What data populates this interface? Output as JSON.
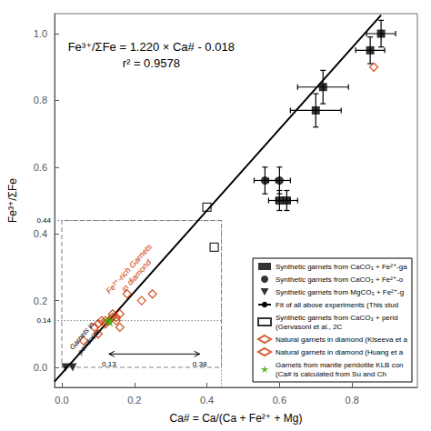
{
  "chart_data": {
    "type": "scatter",
    "title": "Fe³⁺/ΣFe = 1.220 × Ca# - 0.018",
    "subtitle": "r² = 0.9578",
    "xlabel": "Ca# = Ca/(Ca + Fe²⁺ + Mg)",
    "ylabel": "Fe³⁺/ΣFe",
    "xlim": [
      -0.02,
      0.98
    ],
    "ylim": [
      -0.06,
      1.06
    ],
    "xticks": [
      {
        "value": 0,
        "label": "0.0"
      },
      0.2,
      0.4,
      0.6,
      0.8
    ],
    "yticks": [
      {
        "value": 0,
        "label": "0.0"
      },
      0.2,
      0.4,
      0.6,
      0.8,
      {
        "value": 1,
        "label": "1.0"
      }
    ],
    "grid": false,
    "legend": "lower right",
    "series": [
      {
        "name": "Synthetic garnets from CaCO₃ + Fe²⁺-ga",
        "type": "scatter",
        "marker": "square",
        "color": "#000000",
        "x": [
          0.6,
          0.62,
          0.7,
          0.72,
          0.85,
          0.88
        ],
        "y": [
          0.5,
          0.5,
          0.77,
          0.84,
          0.95,
          1.0
        ],
        "xerr": [
          0.03,
          0.03,
          0.07,
          0.07,
          0.04,
          0.04
        ],
        "yerr": [
          0.03,
          0.03,
          0.05,
          0.05,
          0.04,
          0.04
        ]
      },
      {
        "name": "Synthetic garnets from CaCO₃ + Fe²⁺-o",
        "type": "scatter",
        "marker": "circle",
        "color": "#000000",
        "x": [
          0.56,
          0.6
        ],
        "y": [
          0.56,
          0.56
        ],
        "xerr": [
          0.03,
          0.03
        ],
        "yerr": [
          0.04,
          0.04
        ]
      },
      {
        "name": "Synthetic garnets from MgCO₃ + Fe²⁺-g",
        "type": "scatter",
        "marker": "triangle-down",
        "color": "#000000",
        "x": [
          0.01,
          0.03
        ],
        "y": [
          0.0,
          0.0
        ]
      },
      {
        "name": "Fit of all above experiments (This stud",
        "type": "line",
        "line_style": "solid",
        "color": "#000000",
        "x": [
          -0.02,
          0.88
        ],
        "y": [
          -0.0424,
          1.0556
        ]
      },
      {
        "name": "Synthetic garnets from CaCO₃ + perid\n(Gervasoni et al., 2C",
        "type": "scatter",
        "marker": "square-open",
        "color": "#000000",
        "x": [
          0.4,
          0.42
        ],
        "y": [
          0.48,
          0.36
        ]
      },
      {
        "name": "Natural garnets in diamond (Kiseeva et a",
        "type": "scatter",
        "marker": "diamond-open",
        "color": "#cc3300",
        "x": [
          0.06,
          0.09,
          0.1,
          0.11,
          0.12,
          0.13,
          0.14,
          0.15,
          0.16,
          0.18,
          0.25,
          0.86
        ],
        "y": [
          0.08,
          0.12,
          0.13,
          0.14,
          0.14,
          0.14,
          0.15,
          0.15,
          0.12,
          0.22,
          0.22,
          0.9
        ]
      },
      {
        "name": "Natural garnets in diamond (Huang et a",
        "type": "scatter",
        "marker": "diamond-open",
        "color": "#cc3300",
        "x": [
          0.1,
          0.12,
          0.14,
          0.15,
          0.16,
          0.22
        ],
        "y": [
          0.1,
          0.13,
          0.16,
          0.14,
          0.16,
          0.2
        ]
      },
      {
        "name": "Garnets from mantle peridotite KLB con\n(Ca# is calculated from Su and Ch",
        "type": "scatter",
        "marker": "star",
        "color": "#33aa00",
        "x": [
          0.13
        ],
        "y": [
          0.14
        ]
      }
    ],
    "annotations": [
      {
        "text": "Fe³⁺-rich Garnets\nin diamond",
        "x": 0.195,
        "y": 0.285,
        "color": "#cc3300"
      },
      {
        "text": "Garnets in\nperidotite",
        "x": 0.065,
        "y": 0.085,
        "color": "#000000"
      }
    ],
    "arrow": {
      "x": [
        0.13,
        0.38
      ],
      "y": [
        0.04,
        0.04
      ],
      "labels": [
        "0.13",
        "0.38"
      ],
      "color": "#000000"
    },
    "ref_labels": [
      {
        "y": 0.44,
        "label": "0.44"
      },
      {
        "y": 0.14,
        "label": "0.14"
      }
    ],
    "guides": [
      {
        "x": [
          -0.02,
          0.44
        ],
        "y": [
          0.44,
          0.44
        ],
        "line_style": "dotted",
        "color": "#808080"
      },
      {
        "x": [
          0.44,
          0.44
        ],
        "y": [
          -0.06,
          0.44
        ],
        "line_style": "dotted",
        "color": "#808080"
      },
      {
        "x": [
          -0.02,
          0.44
        ],
        "y": [
          0.14,
          0.14
        ],
        "line_style": "dotted",
        "color": "#808080"
      },
      {
        "x": [
          0.0,
          0.44,
          0.44,
          0.0,
          0.0
        ],
        "y": [
          0.0,
          0.0,
          0.44,
          0.44,
          0.0
        ],
        "line_style": "dashed",
        "color": "#808080"
      }
    ]
  }
}
